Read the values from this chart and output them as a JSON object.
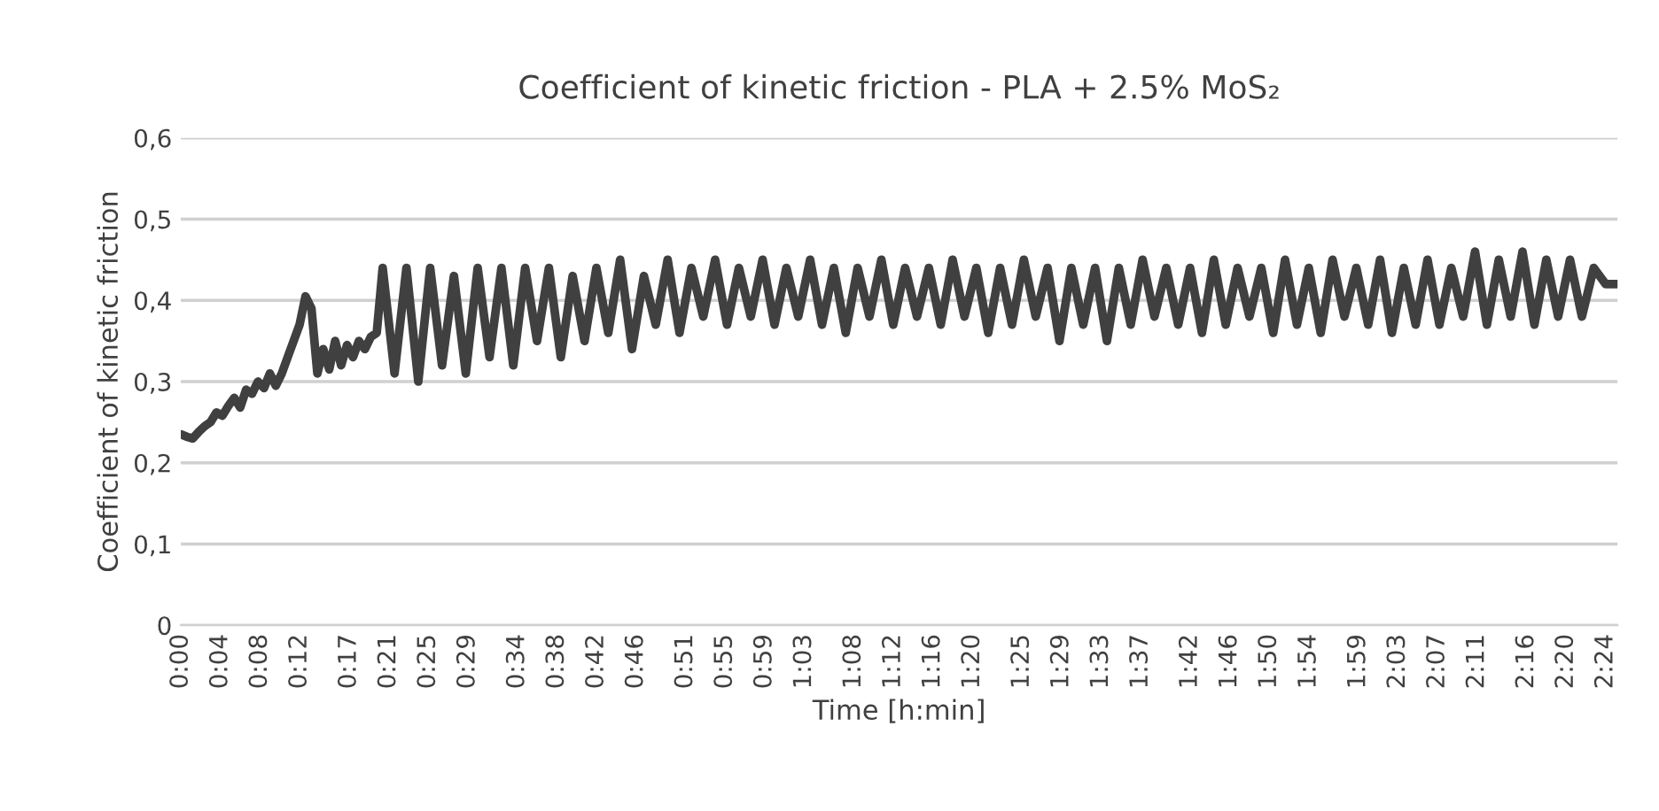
{
  "chart_data": {
    "type": "line",
    "title": "Coefficient of kinetic friction - PLA + 2.5% MoS₂",
    "xlabel": "Time [h:min]",
    "ylabel": "Coefficient of kinetic friction",
    "x": [
      0,
      0.01,
      0.02,
      0.03,
      0.04,
      0.05,
      0.06,
      0.07,
      0.08,
      0.09,
      0.1,
      0.11,
      0.12,
      0.13,
      0.14,
      0.15,
      0.16,
      0.17,
      0.18,
      0.19,
      0.2,
      0.21,
      0.22,
      0.23,
      0.24,
      0.25,
      0.26,
      0.27,
      0.28,
      0.29,
      0.3,
      0.31,
      0.32,
      0.33,
      0.34,
      0.36,
      0.38,
      0.4,
      0.42,
      0.44,
      0.46,
      0.48,
      0.5,
      0.52,
      0.54,
      0.56,
      0.58,
      0.6,
      0.62,
      0.64,
      0.66,
      0.68,
      0.7,
      0.72,
      0.74,
      0.76,
      0.78,
      0.8,
      0.82,
      0.84,
      0.86,
      0.88,
      0.9,
      0.92,
      0.94,
      0.96,
      0.98,
      1.0,
      1.02,
      1.04,
      1.06,
      1.08,
      1.1,
      1.12,
      1.14,
      1.16,
      1.18,
      1.2,
      1.22,
      1.24,
      1.26,
      1.28,
      1.3,
      1.32,
      1.34,
      1.36,
      1.38,
      1.4,
      1.42,
      1.44,
      1.46,
      1.48,
      1.5,
      1.52,
      1.54,
      1.56,
      1.58,
      1.6,
      1.62,
      1.64,
      1.66,
      1.68,
      1.7,
      1.72,
      1.74,
      1.76,
      1.78,
      1.8,
      1.82,
      1.84,
      1.86,
      1.88,
      1.9,
      1.92,
      1.94,
      1.96,
      1.98,
      2.0,
      2.02,
      2.04,
      2.06,
      2.08,
      2.1,
      2.12,
      2.14,
      2.16,
      2.18,
      2.2,
      2.22,
      2.24,
      2.26,
      2.28,
      2.3,
      2.32,
      2.34,
      2.36,
      2.38,
      2.4,
      2.42
    ],
    "series": [
      {
        "color": "#404040",
        "values": [
          0.235,
          0.232,
          0.23,
          0.238,
          0.245,
          0.25,
          0.262,
          0.258,
          0.27,
          0.28,
          0.268,
          0.29,
          0.285,
          0.3,
          0.292,
          0.31,
          0.295,
          0.31,
          0.33,
          0.35,
          0.37,
          0.405,
          0.39,
          0.31,
          0.34,
          0.315,
          0.35,
          0.32,
          0.345,
          0.33,
          0.35,
          0.34,
          0.355,
          0.36,
          0.44,
          0.31,
          0.44,
          0.3,
          0.44,
          0.32,
          0.43,
          0.31,
          0.44,
          0.33,
          0.44,
          0.32,
          0.44,
          0.35,
          0.44,
          0.33,
          0.43,
          0.35,
          0.44,
          0.36,
          0.45,
          0.34,
          0.43,
          0.37,
          0.45,
          0.36,
          0.44,
          0.38,
          0.45,
          0.37,
          0.44,
          0.38,
          0.45,
          0.37,
          0.44,
          0.38,
          0.45,
          0.37,
          0.44,
          0.36,
          0.44,
          0.38,
          0.45,
          0.37,
          0.44,
          0.38,
          0.44,
          0.37,
          0.45,
          0.38,
          0.44,
          0.36,
          0.44,
          0.37,
          0.45,
          0.38,
          0.44,
          0.35,
          0.44,
          0.37,
          0.44,
          0.35,
          0.44,
          0.37,
          0.45,
          0.38,
          0.44,
          0.37,
          0.44,
          0.36,
          0.45,
          0.37,
          0.44,
          0.38,
          0.44,
          0.36,
          0.45,
          0.37,
          0.44,
          0.36,
          0.45,
          0.38,
          0.44,
          0.37,
          0.45,
          0.36,
          0.44,
          0.37,
          0.45,
          0.37,
          0.44,
          0.38,
          0.46,
          0.37,
          0.45,
          0.38,
          0.46,
          0.37,
          0.45,
          0.38,
          0.45,
          0.38,
          0.44,
          0.42,
          0.42
        ]
      }
    ],
    "xlim": [
      0,
      2.42
    ],
    "xticks": [
      {
        "value": 0,
        "label": "0:00"
      },
      {
        "value": 0.0667,
        "label": "0:04"
      },
      {
        "value": 0.1333,
        "label": "0:08"
      },
      {
        "value": 0.2,
        "label": "0:12"
      },
      {
        "value": 0.2833,
        "label": "0:17"
      },
      {
        "value": 0.35,
        "label": "0:21"
      },
      {
        "value": 0.4167,
        "label": "0:25"
      },
      {
        "value": 0.4833,
        "label": "0:29"
      },
      {
        "value": 0.5667,
        "label": "0:34"
      },
      {
        "value": 0.6333,
        "label": "0:38"
      },
      {
        "value": 0.7,
        "label": "0:42"
      },
      {
        "value": 0.7667,
        "label": "0:46"
      },
      {
        "value": 0.85,
        "label": "0:51"
      },
      {
        "value": 0.9167,
        "label": "0:55"
      },
      {
        "value": 0.9833,
        "label": "0:59"
      },
      {
        "value": 1.05,
        "label": "1:03"
      },
      {
        "value": 1.1333,
        "label": "1:08"
      },
      {
        "value": 1.2,
        "label": "1:12"
      },
      {
        "value": 1.2667,
        "label": "1:16"
      },
      {
        "value": 1.3333,
        "label": "1:20"
      },
      {
        "value": 1.4167,
        "label": "1:25"
      },
      {
        "value": 1.4833,
        "label": "1:29"
      },
      {
        "value": 1.55,
        "label": "1:33"
      },
      {
        "value": 1.6167,
        "label": "1:37"
      },
      {
        "value": 1.7,
        "label": "1:42"
      },
      {
        "value": 1.7667,
        "label": "1:46"
      },
      {
        "value": 1.8333,
        "label": "1:50"
      },
      {
        "value": 1.9,
        "label": "1:54"
      },
      {
        "value": 1.9833,
        "label": "1:59"
      },
      {
        "value": 2.05,
        "label": "2:03"
      },
      {
        "value": 2.1167,
        "label": "2:07"
      },
      {
        "value": 2.1833,
        "label": "2:11"
      },
      {
        "value": 2.2667,
        "label": "2:16"
      },
      {
        "value": 2.3333,
        "label": "2:20"
      },
      {
        "value": 2.4,
        "label": "2:24"
      }
    ],
    "ylim": [
      0,
      0.6
    ],
    "yticks": [
      {
        "value": 0,
        "label": "0"
      },
      {
        "value": 0.1,
        "label": "0,1"
      },
      {
        "value": 0.2,
        "label": "0,2"
      },
      {
        "value": 0.3,
        "label": "0,3"
      },
      {
        "value": 0.4,
        "label": "0,4"
      },
      {
        "value": 0.5,
        "label": "0,5"
      },
      {
        "value": 0.6,
        "label": "0,6"
      }
    ],
    "grid": "y",
    "line_style": "solid",
    "marker": "none"
  }
}
